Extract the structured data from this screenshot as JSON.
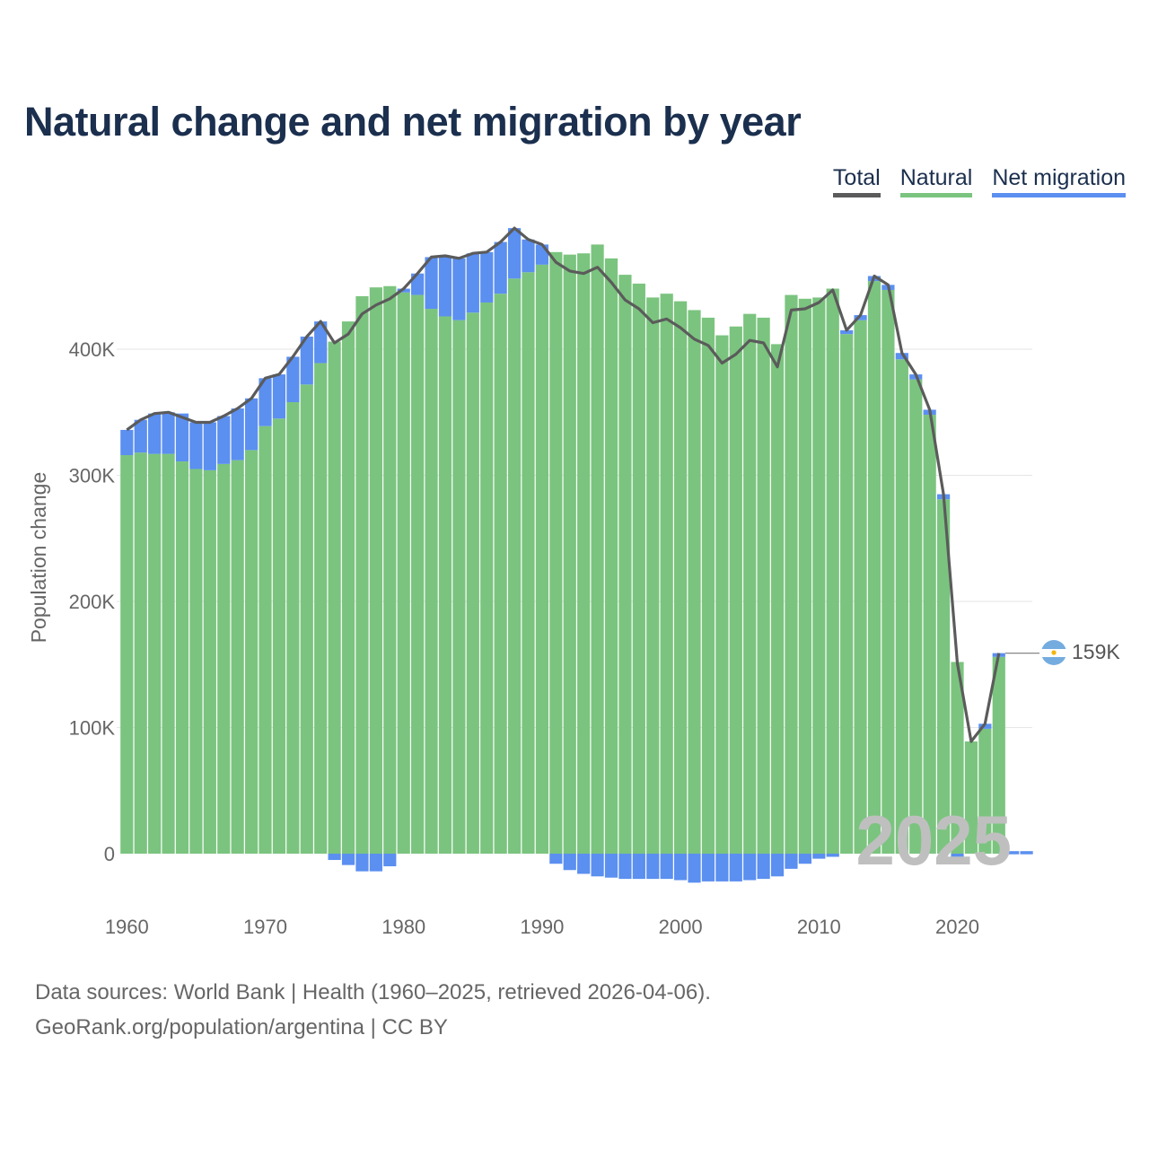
{
  "title": "Natural change and net migration by year",
  "legend": {
    "total": "Total",
    "natural": "Natural",
    "migration": "Net migration"
  },
  "footer": {
    "line1": "Data sources: World Bank | Health (1960–2025, retrieved 2026-04-06).",
    "line2": "GeoRank.org/population/argentina | CC BY"
  },
  "watermark": "2025",
  "end_label": "159K",
  "colors": {
    "natural": "#7bc47f",
    "migration": "#5b8ff0",
    "total": "#5b5b5b",
    "title": "#1b2f4e",
    "grid": "#e6e6e6"
  },
  "flag_icon": "argentina-flag-icon",
  "chart_data": {
    "type": "bar",
    "title": "Natural change and net migration by year",
    "xlabel": "",
    "ylabel": "Population change",
    "ylim": [
      -32000,
      500000
    ],
    "y_ticks": [
      0,
      100000,
      200000,
      300000,
      400000
    ],
    "y_tick_labels": [
      "0",
      "100K",
      "200K",
      "300K",
      "400K"
    ],
    "x_ticks": [
      1960,
      1970,
      1980,
      1990,
      2000,
      2010,
      2020
    ],
    "x_tick_labels": [
      "1960",
      "1970",
      "1980",
      "1990",
      "2000",
      "2010",
      "2020"
    ],
    "stacked": true,
    "categories": [
      1960,
      1961,
      1962,
      1963,
      1964,
      1965,
      1966,
      1967,
      1968,
      1969,
      1970,
      1971,
      1972,
      1973,
      1974,
      1975,
      1976,
      1977,
      1978,
      1979,
      1980,
      1981,
      1982,
      1983,
      1984,
      1985,
      1986,
      1987,
      1988,
      1989,
      1990,
      1991,
      1992,
      1993,
      1994,
      1995,
      1996,
      1997,
      1998,
      1999,
      2000,
      2001,
      2002,
      2003,
      2004,
      2005,
      2006,
      2007,
      2008,
      2009,
      2010,
      2011,
      2012,
      2013,
      2014,
      2015,
      2016,
      2017,
      2018,
      2019,
      2020,
      2021,
      2022,
      2023,
      2024,
      2025
    ],
    "series": [
      {
        "name": "Natural",
        "values": [
          316000,
          318000,
          317000,
          317000,
          311000,
          305000,
          304000,
          309000,
          312000,
          320000,
          339000,
          345000,
          358000,
          372000,
          389000,
          406000,
          422000,
          442000,
          449000,
          450000,
          445000,
          443000,
          432000,
          426000,
          423000,
          429000,
          437000,
          444000,
          456000,
          461000,
          467000,
          477000,
          475000,
          476000,
          483000,
          472000,
          459000,
          452000,
          441000,
          444000,
          438000,
          431000,
          425000,
          411000,
          418000,
          428000,
          425000,
          404000,
          443000,
          440000,
          441000,
          448000,
          412000,
          423000,
          454000,
          447000,
          392000,
          376000,
          348000,
          281000,
          152000,
          89000,
          99000,
          156000,
          0,
          0
        ]
      },
      {
        "name": "Net migration",
        "values": [
          20000,
          26000,
          32000,
          33000,
          38000,
          37000,
          38000,
          38000,
          41000,
          41000,
          38000,
          35000,
          36000,
          38000,
          33000,
          -5000,
          -9000,
          -14000,
          -14000,
          -10000,
          3000,
          17000,
          41000,
          48000,
          49000,
          47000,
          40000,
          41000,
          40000,
          26000,
          16000,
          -8000,
          -13000,
          -16000,
          -18000,
          -19000,
          -20000,
          -20000,
          -20000,
          -20000,
          -21000,
          -23000,
          -22000,
          -22000,
          -22000,
          -21000,
          -20000,
          -18000,
          -12000,
          -8000,
          -4000,
          -1000,
          3000,
          4000,
          4000,
          4000,
          5000,
          4000,
          4000,
          4000,
          -1000,
          0,
          4000,
          3000,
          2000,
          2000
        ]
      },
      {
        "name": "Total",
        "values": [
          336000,
          344000,
          349000,
          350000,
          346000,
          342000,
          342000,
          347000,
          353000,
          361000,
          377000,
          380000,
          394000,
          410000,
          422000,
          405000,
          412000,
          428000,
          435000,
          440000,
          448000,
          460000,
          473000,
          474000,
          472000,
          476000,
          477000,
          485000,
          496000,
          487000,
          483000,
          469000,
          462000,
          460000,
          465000,
          453000,
          439000,
          432000,
          421000,
          424000,
          417000,
          408000,
          403000,
          389000,
          396000,
          407000,
          405000,
          386000,
          431000,
          432000,
          437000,
          447000,
          415000,
          427000,
          458000,
          451000,
          397000,
          380000,
          352000,
          285000,
          151000,
          89000,
          103000,
          159000,
          null,
          null
        ]
      }
    ],
    "annotations": [
      {
        "text": "159K",
        "x": 2023,
        "y": 159000
      },
      {
        "text": "2025",
        "role": "year-watermark"
      }
    ]
  }
}
